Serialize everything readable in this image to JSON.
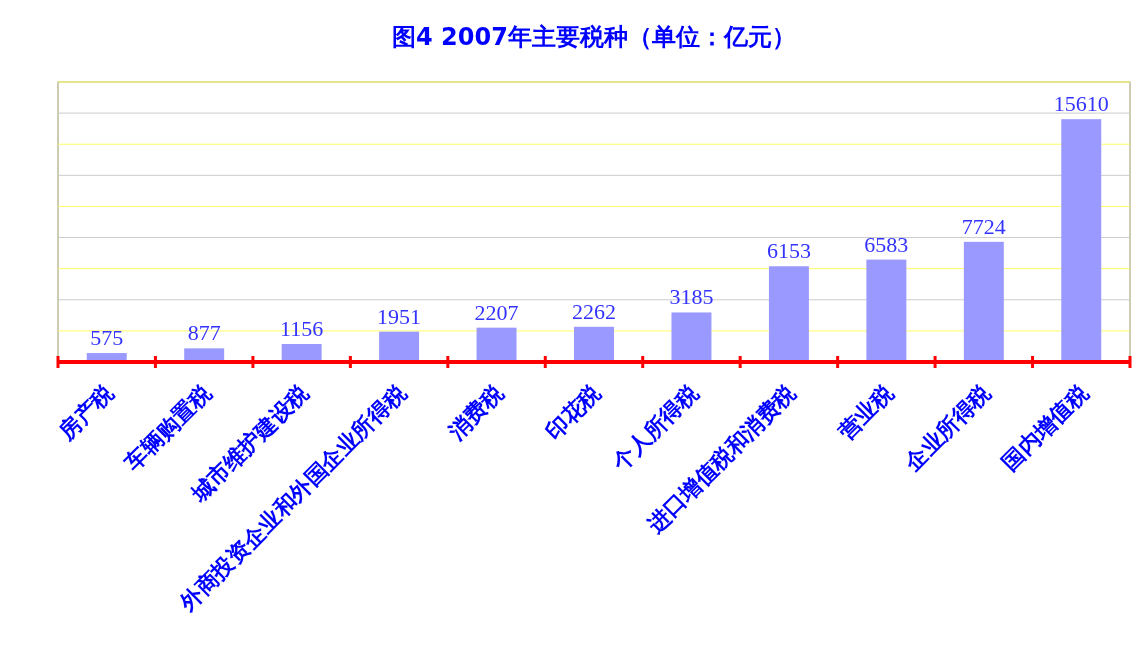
{
  "chart_data": {
    "type": "bar",
    "title": "图4  2007年主要税种（单位：亿元）",
    "categories": [
      "房产税",
      "车辆购置税",
      "城市维护建设税",
      "外商投资企业和外国企业所得税",
      "消费税",
      "印花税",
      "个人所得税",
      "进口增值税和消费税",
      "营业税",
      "企业所得税",
      "国内增值税"
    ],
    "values": [
      575,
      877,
      1156,
      1951,
      2207,
      2262,
      3185,
      6153,
      6583,
      7724,
      15610
    ],
    "color": "#9999ff",
    "data_labels": true,
    "ylim": [
      0,
      18000
    ],
    "yticks": [
      {
        "value": 0,
        "label": null
      },
      {
        "value": 2000,
        "label": null
      },
      {
        "value": 4000,
        "label": null
      },
      {
        "value": 6000,
        "label": null
      },
      {
        "value": 8000,
        "label": null
      },
      {
        "value": 10000,
        "label": null
      },
      {
        "value": 12000,
        "label": null
      },
      {
        "value": 14000,
        "label": null
      },
      {
        "value": 16000,
        "label": null
      },
      {
        "value": 18000,
        "label": null
      }
    ],
    "grid": "y"
  }
}
